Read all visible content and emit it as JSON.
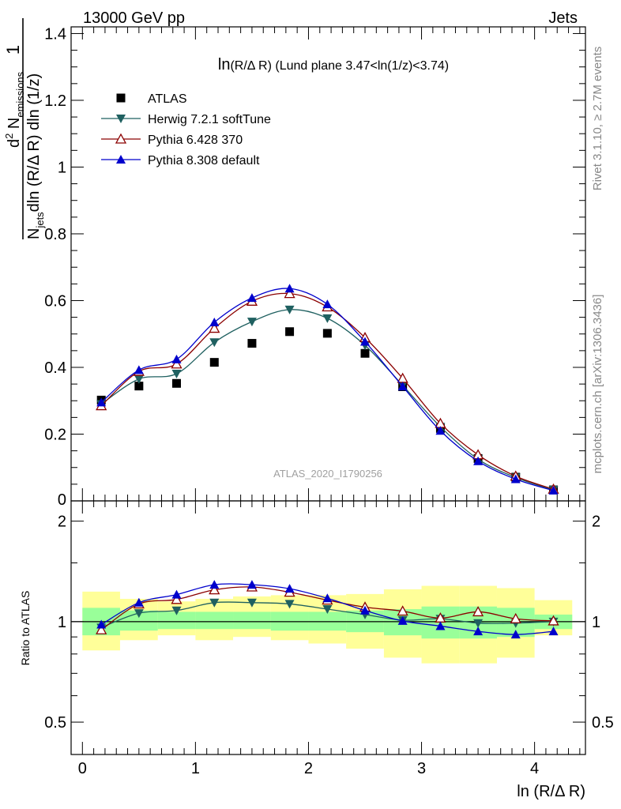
{
  "header": {
    "left": "13000 GeV pp",
    "right": "Jets"
  },
  "side_labels": {
    "rivet": "Rivet 3.1.10, ≥ 2.7M events",
    "mcplots": "mcplots.cern.ch [arXiv:1306.3436]"
  },
  "colors": {
    "atlas": "#000000",
    "herwig": "#1f6060",
    "pythia6": "#8b0000",
    "pythia8": "#0000cc",
    "band_outer": "#ffff99",
    "band_inner": "#99ff99"
  },
  "chart_data": [
    {
      "type": "scatter",
      "title_main": "ln",
      "title_rest": "(R/Δ R) (Lund plane 3.47<ln(1/z)<3.74)",
      "ylabel": {
        "one": "1",
        "njets": "N",
        "njets_sub": "jets",
        "dln": "dln (R/Δ R) dln (1/z)",
        "d2": "d",
        "d2_sup": "2",
        "nem": " N",
        "nem_sub": "emissions"
      },
      "watermark": "ATLAS_2020_I1790256",
      "xlim": [
        -0.1,
        4.45
      ],
      "ylim": [
        0,
        1.42
      ],
      "yticks": [
        0.2,
        0.4,
        0.6,
        0.8,
        1,
        1.2,
        1.4
      ],
      "ytick_labels": [
        "0.2",
        "0.4",
        "0.6",
        "0.8",
        "1",
        "1.2",
        "1.4"
      ],
      "ytick_zero_label": "0",
      "legend_position": "top-left",
      "x": [
        0.167,
        0.5,
        0.833,
        1.167,
        1.5,
        1.833,
        2.167,
        2.5,
        2.833,
        3.167,
        3.5,
        3.833,
        4.167
      ],
      "series": [
        {
          "name": "ATLAS",
          "marker": "square",
          "values": [
            0.302,
            0.344,
            0.352,
            0.415,
            0.472,
            0.507,
            0.502,
            0.442,
            0.342,
            0.217,
            0.127,
            0.071,
            0.033
          ]
        },
        {
          "name": "Herwig 7.2.1 softTune",
          "marker": "triangle-down",
          "values": [
            0.29,
            0.365,
            0.381,
            0.475,
            0.537,
            0.573,
            0.547,
            0.466,
            0.346,
            0.222,
            0.125,
            0.07,
            0.033
          ]
        },
        {
          "name": "Pythia 6.428 370",
          "marker": "triangle-up-open",
          "values": [
            0.285,
            0.388,
            0.41,
            0.517,
            0.598,
            0.621,
            0.581,
            0.489,
            0.367,
            0.232,
            0.138,
            0.074,
            0.035
          ]
        },
        {
          "name": "Pythia 8.308 default",
          "marker": "triangle-up",
          "values": [
            0.295,
            0.392,
            0.424,
            0.535,
            0.608,
            0.636,
            0.589,
            0.477,
            0.343,
            0.21,
            0.119,
            0.065,
            0.031
          ]
        }
      ]
    },
    {
      "type": "line",
      "ylabel": "Ratio to ATLAS",
      "xlabel": "ln (R/Δ R)",
      "xlim": [
        -0.1,
        4.45
      ],
      "ylim": [
        0.4,
        2.3
      ],
      "log_y": true,
      "yticks": [
        0.5,
        1,
        2
      ],
      "ytick_labels": [
        "0.5",
        "1",
        "2"
      ],
      "xticks": [
        0,
        1,
        2,
        3,
        4
      ],
      "xtick_labels": [
        "0",
        "1",
        "2",
        "3",
        "4"
      ],
      "bin_edges": [
        0,
        0.333,
        0.667,
        1,
        1.333,
        1.667,
        2,
        2.333,
        2.667,
        3,
        3.333,
        3.667,
        4,
        4.333
      ],
      "band_outer": [
        [
          0.82,
          1.23
        ],
        [
          0.88,
          1.17
        ],
        [
          0.91,
          1.15
        ],
        [
          0.88,
          1.17
        ],
        [
          0.9,
          1.19
        ],
        [
          0.88,
          1.2
        ],
        [
          0.86,
          1.2
        ],
        [
          0.83,
          1.21
        ],
        [
          0.78,
          1.25
        ],
        [
          0.75,
          1.28
        ],
        [
          0.75,
          1.28
        ],
        [
          0.78,
          1.26
        ],
        [
          0.91,
          1.16
        ]
      ],
      "band_inner": [
        [
          0.91,
          1.1
        ],
        [
          0.94,
          1.08
        ],
        [
          0.95,
          1.07
        ],
        [
          0.95,
          1.07
        ],
        [
          0.95,
          1.07
        ],
        [
          0.94,
          1.07
        ],
        [
          0.94,
          1.07
        ],
        [
          0.93,
          1.08
        ],
        [
          0.91,
          1.09
        ],
        [
          0.89,
          1.11
        ],
        [
          0.89,
          1.11
        ],
        [
          0.9,
          1.1
        ],
        [
          0.95,
          1.05
        ]
      ],
      "x": [
        0.167,
        0.5,
        0.833,
        1.167,
        1.5,
        1.833,
        2.167,
        2.5,
        2.833,
        3.167,
        3.5,
        3.833,
        4.167
      ],
      "series": [
        {
          "name": "Herwig 7.2.1 softTune",
          "marker": "triangle-down",
          "values": [
            0.96,
            1.06,
            1.08,
            1.14,
            1.14,
            1.13,
            1.09,
            1.05,
            1.01,
            1.02,
            0.99,
            0.99,
            1.0
          ]
        },
        {
          "name": "Pythia 6.428 370",
          "marker": "triangle-up-open",
          "values": [
            0.945,
            1.13,
            1.165,
            1.245,
            1.27,
            1.225,
            1.16,
            1.105,
            1.075,
            1.025,
            1.07,
            1.02,
            1.005
          ]
        },
        {
          "name": "Pythia 8.308 default",
          "marker": "triangle-up",
          "values": [
            0.98,
            1.14,
            1.205,
            1.29,
            1.29,
            1.255,
            1.175,
            1.08,
            1.005,
            0.97,
            0.935,
            0.915,
            0.935
          ]
        }
      ]
    }
  ]
}
